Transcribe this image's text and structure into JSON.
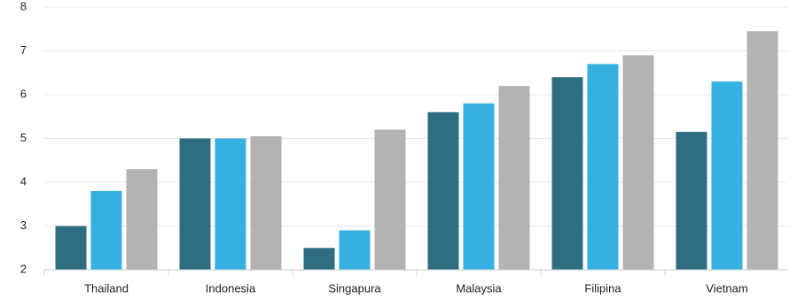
{
  "chart_data": {
    "type": "bar",
    "categories": [
      "Thailand",
      "Indonesia",
      "Singapura",
      "Malaysia",
      "Filipina",
      "Vietnam"
    ],
    "series": [
      {
        "color": "#2e6e80",
        "values": [
          3.0,
          5.0,
          2.5,
          5.6,
          6.4,
          5.15
        ]
      },
      {
        "color": "#35b0e0",
        "values": [
          3.8,
          5.0,
          2.9,
          5.8,
          6.7,
          6.3
        ]
      },
      {
        "color": "#b3b3b6",
        "values": [
          4.3,
          5.05,
          5.2,
          6.2,
          6.9,
          7.45
        ]
      }
    ],
    "ylim": [
      2,
      8
    ],
    "yticks": [
      2,
      3,
      4,
      5,
      6,
      7,
      8
    ],
    "grid": true
  }
}
